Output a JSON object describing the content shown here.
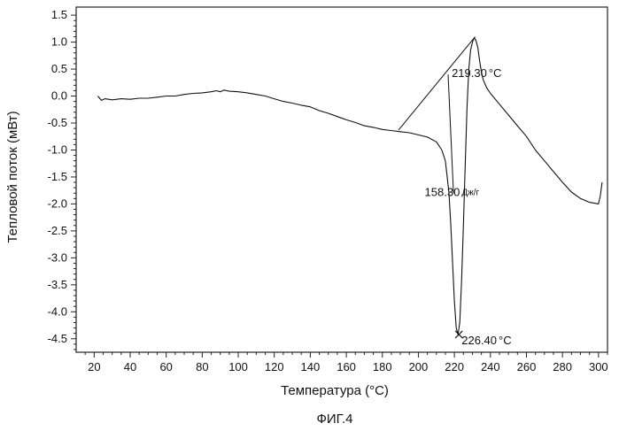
{
  "chart_data": {
    "type": "line",
    "title": "",
    "xlabel": "Температура (°C)",
    "ylabel": "Тепловой поток (мВт)",
    "caption": "ФИГ.4",
    "xlim": [
      10,
      305
    ],
    "ylim": [
      -4.75,
      1.65
    ],
    "xticks": [
      20,
      40,
      60,
      80,
      100,
      120,
      140,
      160,
      180,
      200,
      220,
      240,
      260,
      280,
      300
    ],
    "xtick_labels": [
      "20",
      "40",
      "60",
      "80",
      "100",
      "120",
      "140",
      "160",
      "180",
      "200",
      "220",
      "240",
      "260",
      "280",
      "300"
    ],
    "yticks": [
      1.5,
      1.0,
      0.5,
      0.0,
      -0.5,
      -1.0,
      -1.5,
      -2.0,
      -2.5,
      -3.0,
      -3.5,
      -4.0,
      -4.5
    ],
    "ytick_labels": [
      "1.5",
      "1.0",
      "0.5",
      "0.0",
      "-0.5",
      "-1.0",
      "-1.5",
      "-2.0",
      "-2.5",
      "-3.0",
      "-3.5",
      "-4.0",
      "-4.5"
    ],
    "grid": false,
    "series": [
      {
        "x": [
          22,
          24,
          26,
          30,
          35,
          40,
          45,
          50,
          55,
          60,
          65,
          70,
          75,
          80,
          85,
          88,
          90,
          92,
          95,
          100,
          105,
          110,
          115,
          120,
          125,
          130,
          135,
          140,
          145,
          150,
          155,
          160,
          165,
          170,
          175,
          180,
          185,
          190,
          195,
          200,
          205,
          210,
          213,
          215,
          216,
          217,
          218,
          219,
          220,
          221,
          222,
          223,
          224,
          225,
          226,
          227,
          228,
          229,
          230,
          231,
          232,
          233,
          234,
          235,
          236,
          238,
          240,
          245,
          250,
          255,
          260,
          265,
          270,
          275,
          280,
          285,
          290,
          295,
          300,
          301,
          302
        ],
        "y": [
          0.0,
          -0.08,
          -0.05,
          -0.07,
          -0.05,
          -0.06,
          -0.04,
          -0.04,
          -0.02,
          0.0,
          0.0,
          0.03,
          0.05,
          0.06,
          0.08,
          0.1,
          0.08,
          0.11,
          0.09,
          0.08,
          0.06,
          0.03,
          0.0,
          -0.05,
          -0.1,
          -0.13,
          -0.17,
          -0.2,
          -0.27,
          -0.32,
          -0.38,
          -0.44,
          -0.49,
          -0.55,
          -0.58,
          -0.62,
          -0.64,
          -0.66,
          -0.68,
          -0.72,
          -0.76,
          -0.85,
          -1.0,
          -1.2,
          -1.5,
          -1.8,
          -2.4,
          -3.1,
          -3.8,
          -4.3,
          -4.42,
          -4.2,
          -3.4,
          -2.4,
          -1.3,
          -0.2,
          0.5,
          0.85,
          1.0,
          1.08,
          1.03,
          0.9,
          0.65,
          0.45,
          0.3,
          0.15,
          0.05,
          -0.15,
          -0.35,
          -0.55,
          -0.75,
          -1.0,
          -1.2,
          -1.4,
          -1.6,
          -1.78,
          -1.9,
          -1.97,
          -2.0,
          -1.85,
          -1.6
        ]
      }
    ],
    "baseline_line": {
      "x": [
        189,
        231.5
      ],
      "y": [
        -0.63,
        1.1
      ]
    },
    "integration_segment": {
      "x": [
        216.5,
        219.5
      ],
      "y": [
        0.4,
        -1.8
      ]
    },
    "peak_marker": {
      "x": 222.5,
      "y": -4.42
    },
    "annotations": [
      {
        "label": "219.30",
        "unit": "°C",
        "x": 218.5,
        "y": 0.35
      },
      {
        "label": "158.30",
        "unit": "Дж/г",
        "x": 203.5,
        "y": -1.85
      },
      {
        "label": "226.40",
        "unit": "°C",
        "x": 224,
        "y": -4.6
      }
    ]
  }
}
